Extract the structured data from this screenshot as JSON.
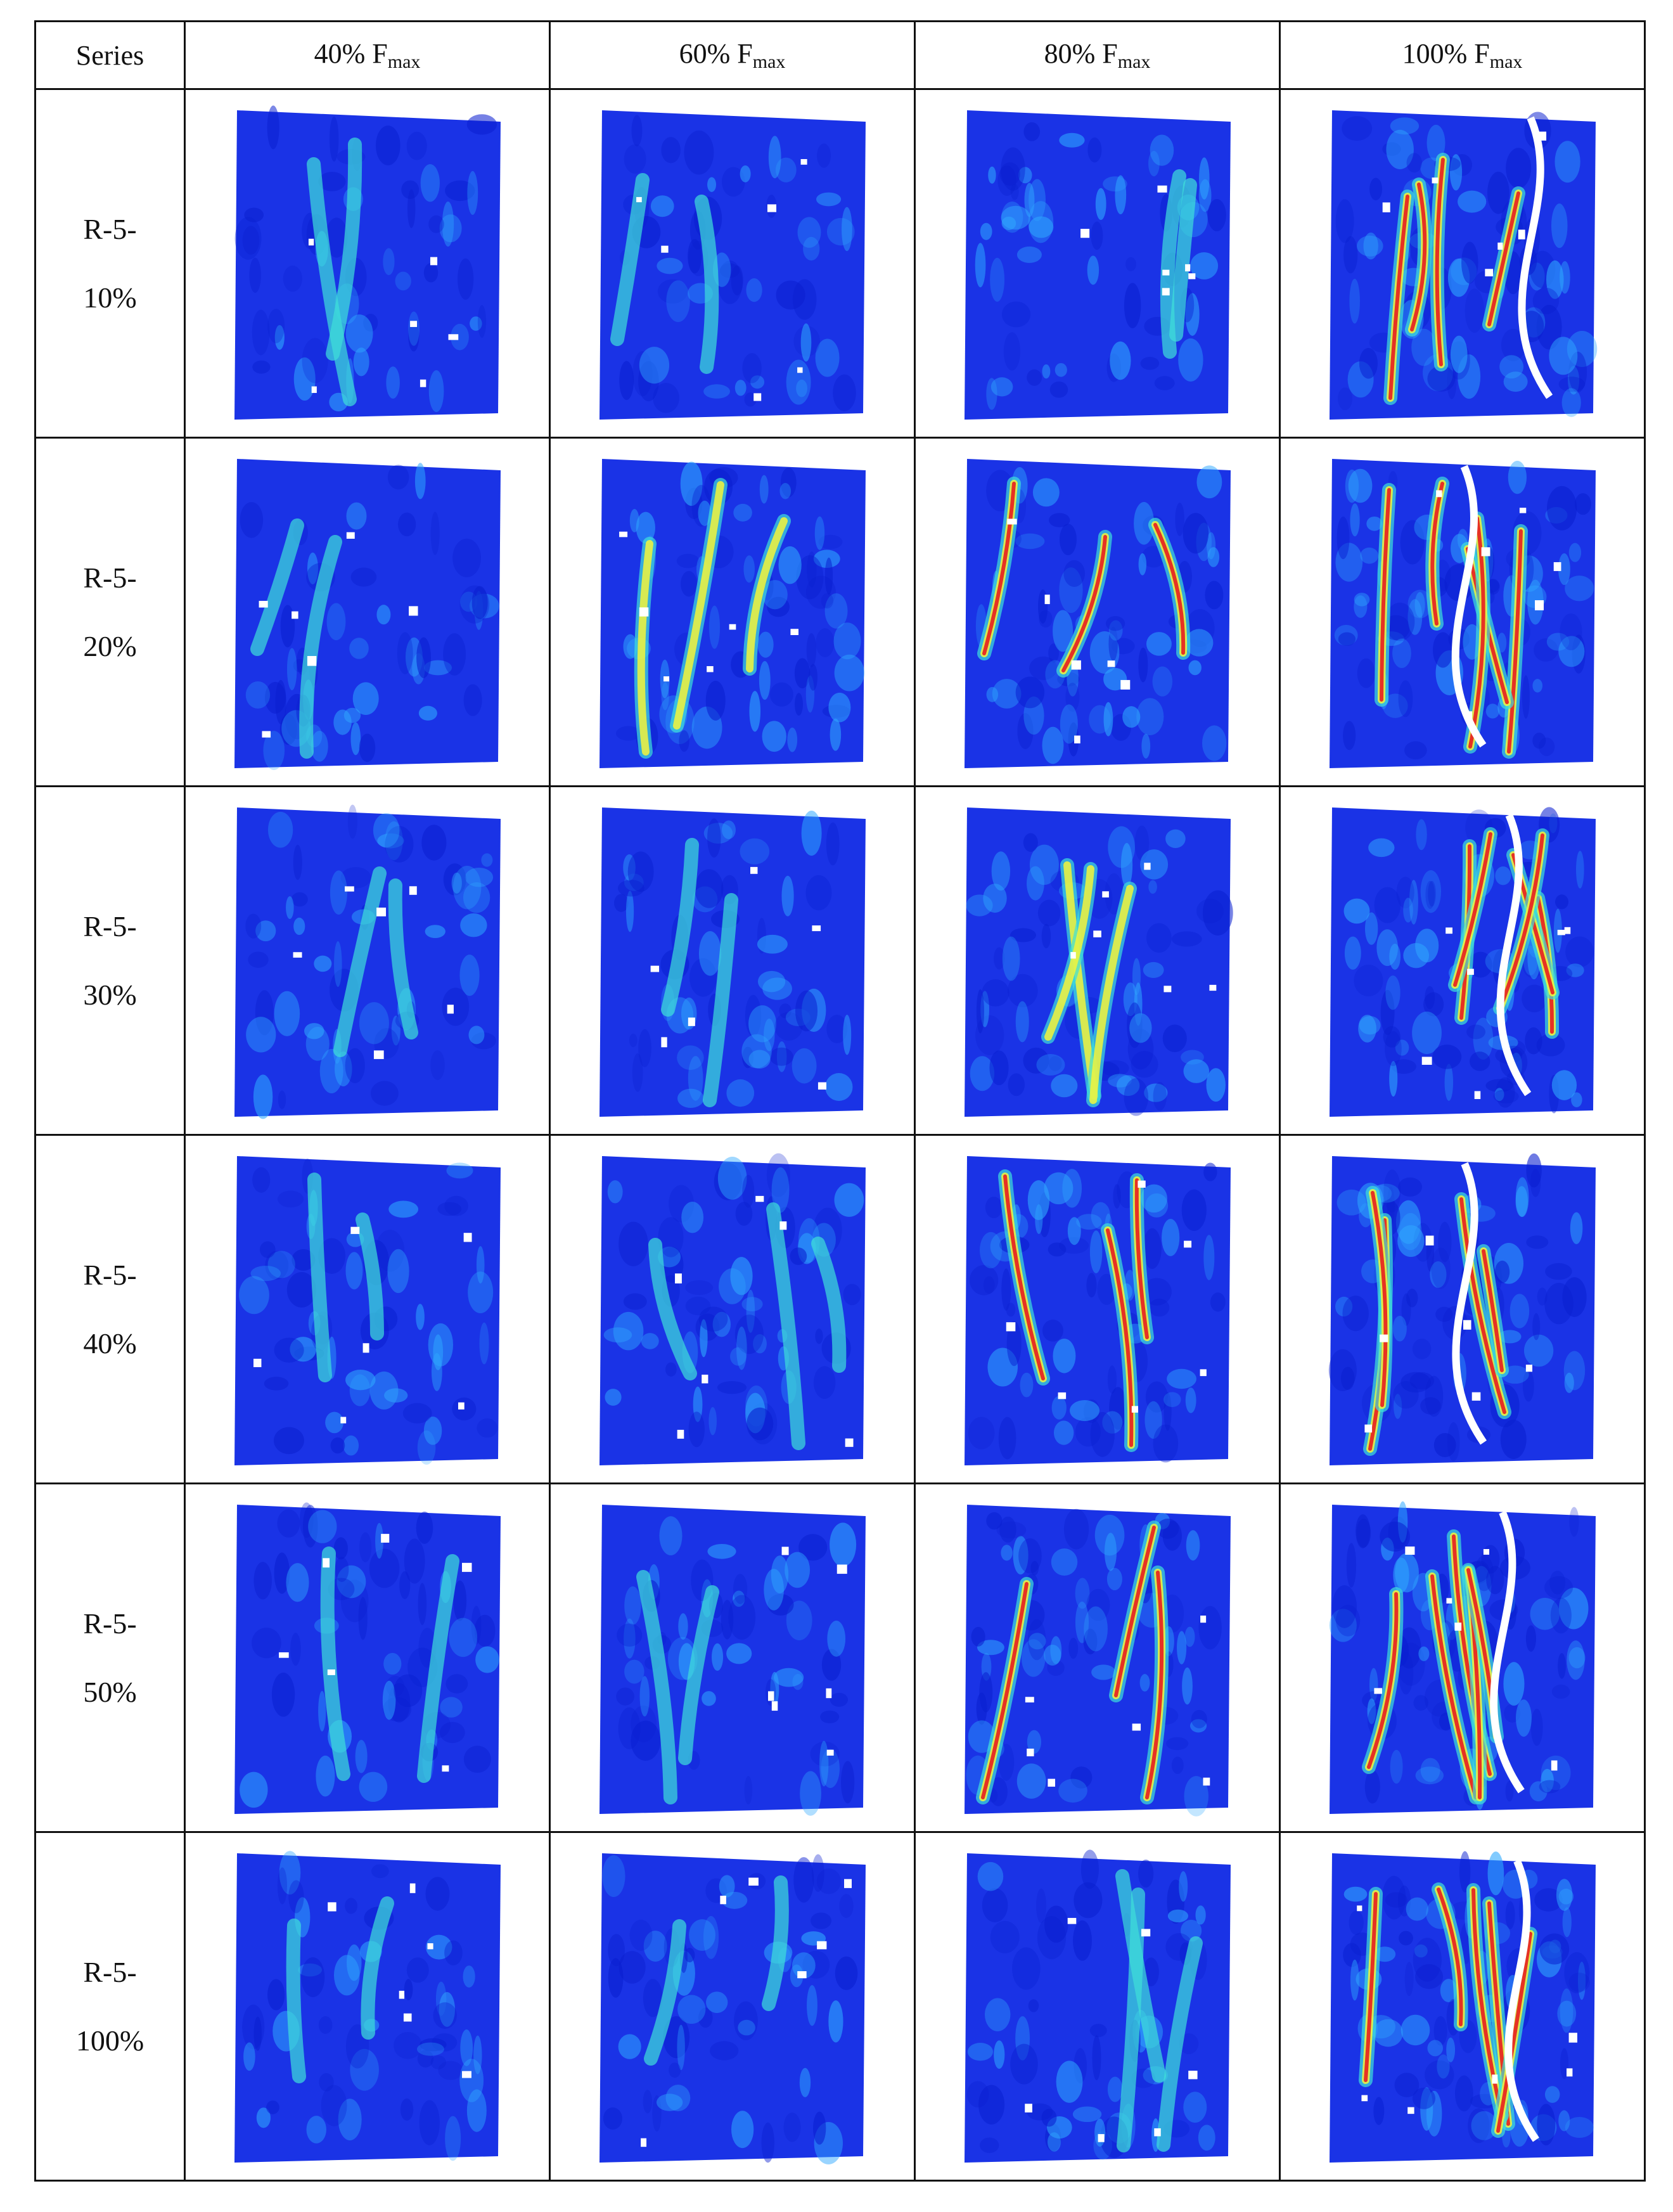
{
  "header": {
    "series_label": "Series",
    "columns": [
      {
        "pct": "40%",
        "F": "F",
        "sub": "max"
      },
      {
        "pct": "60%",
        "F": "F",
        "sub": "max"
      },
      {
        "pct": "80%",
        "F": "F",
        "sub": "max"
      },
      {
        "pct": "100%",
        "F": "F",
        "sub": "max"
      }
    ]
  },
  "rows": [
    {
      "line1": "R-5-",
      "line2": "10%",
      "intensity": [
        0.25,
        0.3,
        0.35,
        0.8
      ]
    },
    {
      "line1": "R-5-",
      "line2": "20%",
      "intensity": [
        0.2,
        0.55,
        0.6,
        0.9
      ]
    },
    {
      "line1": "R-5-",
      "line2": "30%",
      "intensity": [
        0.3,
        0.35,
        0.5,
        0.9
      ]
    },
    {
      "line1": "R-5-",
      "line2": "40%",
      "intensity": [
        0.3,
        0.45,
        0.6,
        0.85
      ]
    },
    {
      "line1": "R-5-",
      "line2": "50%",
      "intensity": [
        0.3,
        0.3,
        0.6,
        0.95
      ]
    },
    {
      "line1": "R-5-",
      "line2": "100%",
      "intensity": [
        0.25,
        0.3,
        0.4,
        0.9
      ]
    }
  ],
  "colors": {
    "field": "#1a33e6",
    "field_dark": "#0a1fd0",
    "light": "#2fa8ff",
    "cyan": "#3fe0d8",
    "yellow": "#f5f53a",
    "red": "#e81e1e",
    "crack": "#ffffff"
  }
}
